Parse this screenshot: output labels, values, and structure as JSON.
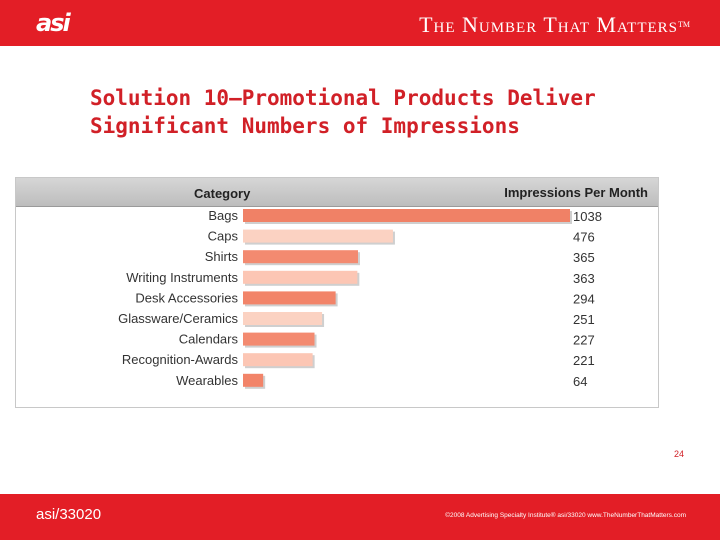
{
  "header": {
    "logo": "asi",
    "tagline": "The Number That Matters",
    "tm": "TM"
  },
  "title_line1": "Solution 10—Promotional Products Deliver",
  "title_line2": "Significant Numbers of Impressions",
  "chart_data": {
    "type": "bar",
    "orientation": "horizontal",
    "column_headers": [
      "Category",
      "Impressions Per Month"
    ],
    "categories": [
      "Bags",
      "Caps",
      "Shirts",
      "Writing Instruments",
      "Desk Accessories",
      "Glassware/Ceramics",
      "Calendars",
      "Recognition-Awards",
      "Wearables"
    ],
    "values": [
      1038,
      476,
      365,
      363,
      294,
      251,
      227,
      221,
      64
    ],
    "colors": [
      "#f08166",
      "#fbd2c2",
      "#f38a70",
      "#fcc6b4",
      "#f28469",
      "#fbd2c2",
      "#f38a70",
      "#fcc6b4",
      "#f28469"
    ]
  },
  "page_number": "24",
  "footer": {
    "code": "asi/33020",
    "copyright": "©2008 Advertising Specialty Institute® asi/33020   www.TheNumberThatMatters.com"
  },
  "colors": {
    "brand_red": "#e31e26",
    "title_red": "#d12027"
  }
}
